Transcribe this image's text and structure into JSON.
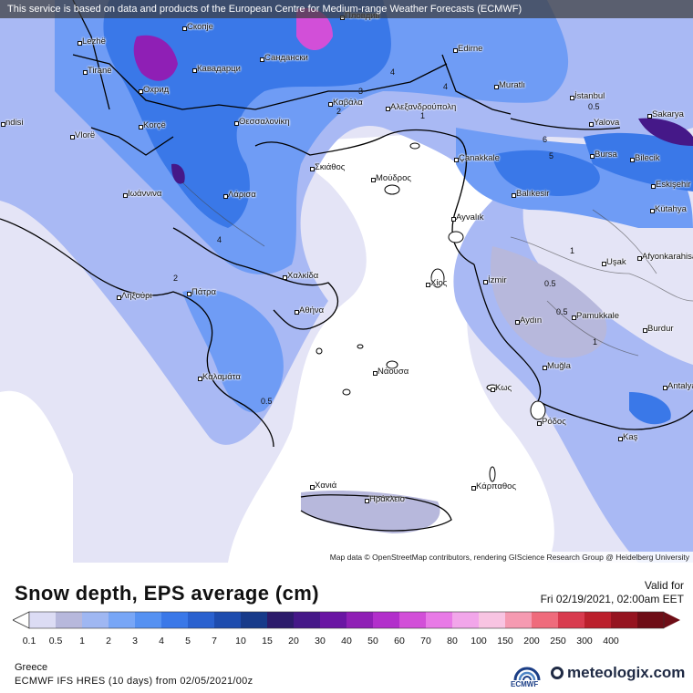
{
  "banner": "This service is based on data and products of the European Centre for Medium-range Weather Forecasts (ECMWF)",
  "attribution": "Map data © OpenStreetMap contributors, rendering GIScience Research Group @ Heidelberg University",
  "cities": [
    {
      "name": "Lezhë"
    },
    {
      "name": "Скопје"
    },
    {
      "name": "Пловдив"
    },
    {
      "name": "Edirne"
    },
    {
      "name": "Tiranë"
    },
    {
      "name": "Кавадарци"
    },
    {
      "name": "Сандански"
    },
    {
      "name": "Muratlı"
    },
    {
      "name": "Охрид"
    },
    {
      "name": "Καβάλα"
    },
    {
      "name": "Αλεξανδρούπολη"
    },
    {
      "name": "İstanbul"
    },
    {
      "name": "Sakarya"
    },
    {
      "name": "ndisi"
    },
    {
      "name": "Korçë"
    },
    {
      "name": "Θεσσαλονίκη"
    },
    {
      "name": "Yalova"
    },
    {
      "name": "Vlorë"
    },
    {
      "name": "Çanakkale"
    },
    {
      "name": "Bursa"
    },
    {
      "name": "Bilecik"
    },
    {
      "name": "Σκιάθος"
    },
    {
      "name": "Μούδρος"
    },
    {
      "name": "Eskişehir"
    },
    {
      "name": "Ιωάννινα"
    },
    {
      "name": "Λάρισα"
    },
    {
      "name": "Balıkesir"
    },
    {
      "name": "Kütahya"
    },
    {
      "name": "Ayvalık"
    },
    {
      "name": "Afyonkarahisar"
    },
    {
      "name": "Uşak"
    },
    {
      "name": "Χαλκίδα"
    },
    {
      "name": "Ληξούρι"
    },
    {
      "name": "Πάτρα"
    },
    {
      "name": "Χίος"
    },
    {
      "name": "İzmir"
    },
    {
      "name": "Αθήνα"
    },
    {
      "name": "Aydın"
    },
    {
      "name": "Pamukkale"
    },
    {
      "name": "Burdur"
    },
    {
      "name": "Καλαμάτα"
    },
    {
      "name": "Νάουσα"
    },
    {
      "name": "Muğla"
    },
    {
      "name": "Κως"
    },
    {
      "name": "Antalya"
    },
    {
      "name": "Ρόδος"
    },
    {
      "name": "Kaş"
    },
    {
      "name": "Χανιά"
    },
    {
      "name": "Ηράκλειο"
    },
    {
      "name": "Κάρπαθος"
    }
  ],
  "contours": [
    "4",
    "4",
    "3",
    "2",
    "6",
    "5",
    "4",
    "2",
    "1",
    "1",
    "0.5",
    "0.5",
    "0.5",
    "1",
    "0.5"
  ],
  "legend": {
    "title": "Snow depth, EPS average (cm)",
    "valid_label": "Valid for",
    "valid_date": "Fri 02/19/2021, 02:00am EET",
    "ticks": [
      "0.1",
      "0.5",
      "1",
      "2",
      "3",
      "4",
      "5",
      "7",
      "10",
      "15",
      "20",
      "30",
      "40",
      "50",
      "60",
      "70",
      "80",
      "100",
      "150",
      "200",
      "250",
      "300",
      "400"
    ],
    "colors": [
      "#dcdcf4",
      "#b7b8dc",
      "#9fb7f2",
      "#78a6f6",
      "#5591f2",
      "#3a78e8",
      "#2a61cf",
      "#1e4cae",
      "#173a8a",
      "#2c1b6b",
      "#451888",
      "#6a15a3",
      "#8f1fb5",
      "#b22fcb",
      "#d24fd8",
      "#e87ae6",
      "#f2a6ea",
      "#f8c4e2",
      "#f59ab1",
      "#ef6b7c",
      "#d83a4e",
      "#bb1f2c",
      "#951420",
      "#6e0d16"
    ]
  },
  "footer": {
    "region": "Greece",
    "model": "ECMWF IFS HRES (10 days) from 02/05/2021/00z",
    "ecmwf_label": "ECMWF",
    "brand": "meteologix.com"
  }
}
